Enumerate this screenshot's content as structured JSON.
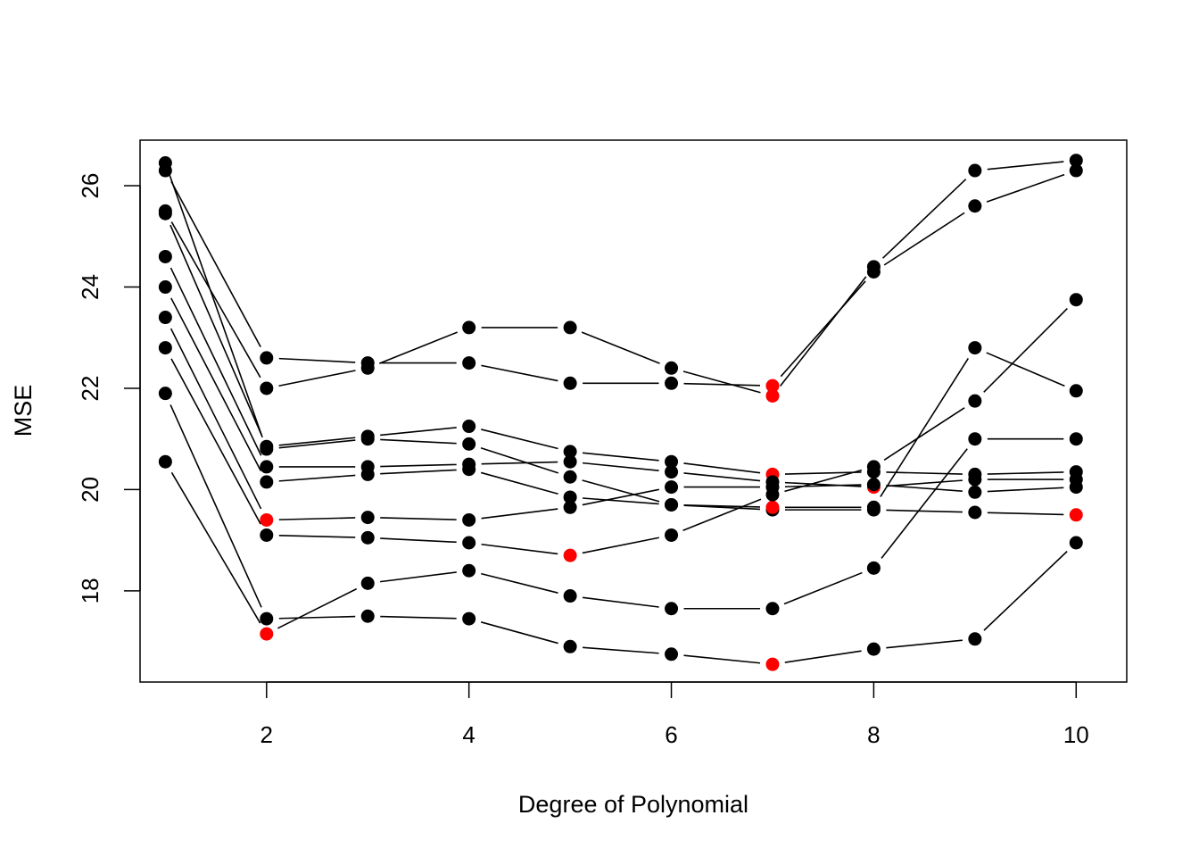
{
  "chart_data": {
    "type": "line",
    "title": "",
    "xlabel": "Degree of Polynomial",
    "ylabel": "MSE",
    "xlim": [
      0.75,
      10.5
    ],
    "ylim": [
      16.2,
      26.9
    ],
    "x_ticks": [
      2,
      4,
      6,
      8,
      10
    ],
    "y_ticks": [
      18,
      20,
      22,
      24,
      26
    ],
    "grid": false,
    "legend": "none",
    "point_color": "#000000",
    "highlight_color": "#ff0000",
    "line_color": "#000000",
    "x": [
      1,
      2,
      3,
      4,
      5,
      6,
      7,
      8,
      9,
      10
    ],
    "series": [
      {
        "values": [
          26.3,
          22.6,
          22.5,
          22.5,
          22.1,
          22.1,
          22.05,
          24.3,
          25.6,
          26.3
        ],
        "min_index": 6
      },
      {
        "values": [
          25.5,
          22.0,
          22.4,
          23.2,
          23.2,
          22.4,
          21.85,
          24.4,
          26.3,
          26.5
        ],
        "min_index": 6
      },
      {
        "values": [
          26.45,
          20.8,
          21.0,
          20.9,
          20.25,
          19.7,
          19.6,
          19.6,
          19.55,
          19.5
        ],
        "min_index": 9
      },
      {
        "values": [
          25.45,
          20.85,
          21.05,
          21.25,
          20.75,
          20.55,
          20.3,
          20.35,
          20.3,
          20.35
        ],
        "min_index": 6
      },
      {
        "values": [
          24.6,
          20.45,
          20.45,
          20.5,
          20.55,
          20.35,
          20.15,
          20.05,
          20.2,
          20.2
        ],
        "min_index": 7
      },
      {
        "values": [
          24.0,
          20.15,
          20.3,
          20.4,
          19.85,
          19.7,
          19.65,
          19.65,
          22.8,
          21.95
        ],
        "min_index": 6
      },
      {
        "values": [
          23.4,
          19.4,
          19.45,
          19.4,
          19.65,
          20.05,
          20.05,
          20.1,
          19.95,
          20.05
        ],
        "min_index": 1
      },
      {
        "values": [
          22.8,
          19.1,
          19.05,
          18.95,
          18.7,
          19.1,
          19.9,
          20.45,
          21.75,
          23.75
        ],
        "min_index": 4
      },
      {
        "values": [
          21.9,
          17.45,
          17.5,
          17.45,
          16.9,
          16.75,
          16.55,
          16.85,
          17.05,
          18.95
        ],
        "min_index": 6
      },
      {
        "values": [
          20.55,
          17.15,
          18.15,
          18.4,
          17.9,
          17.65,
          17.65,
          18.45,
          21.0,
          21.0
        ],
        "min_index": 1
      }
    ]
  }
}
